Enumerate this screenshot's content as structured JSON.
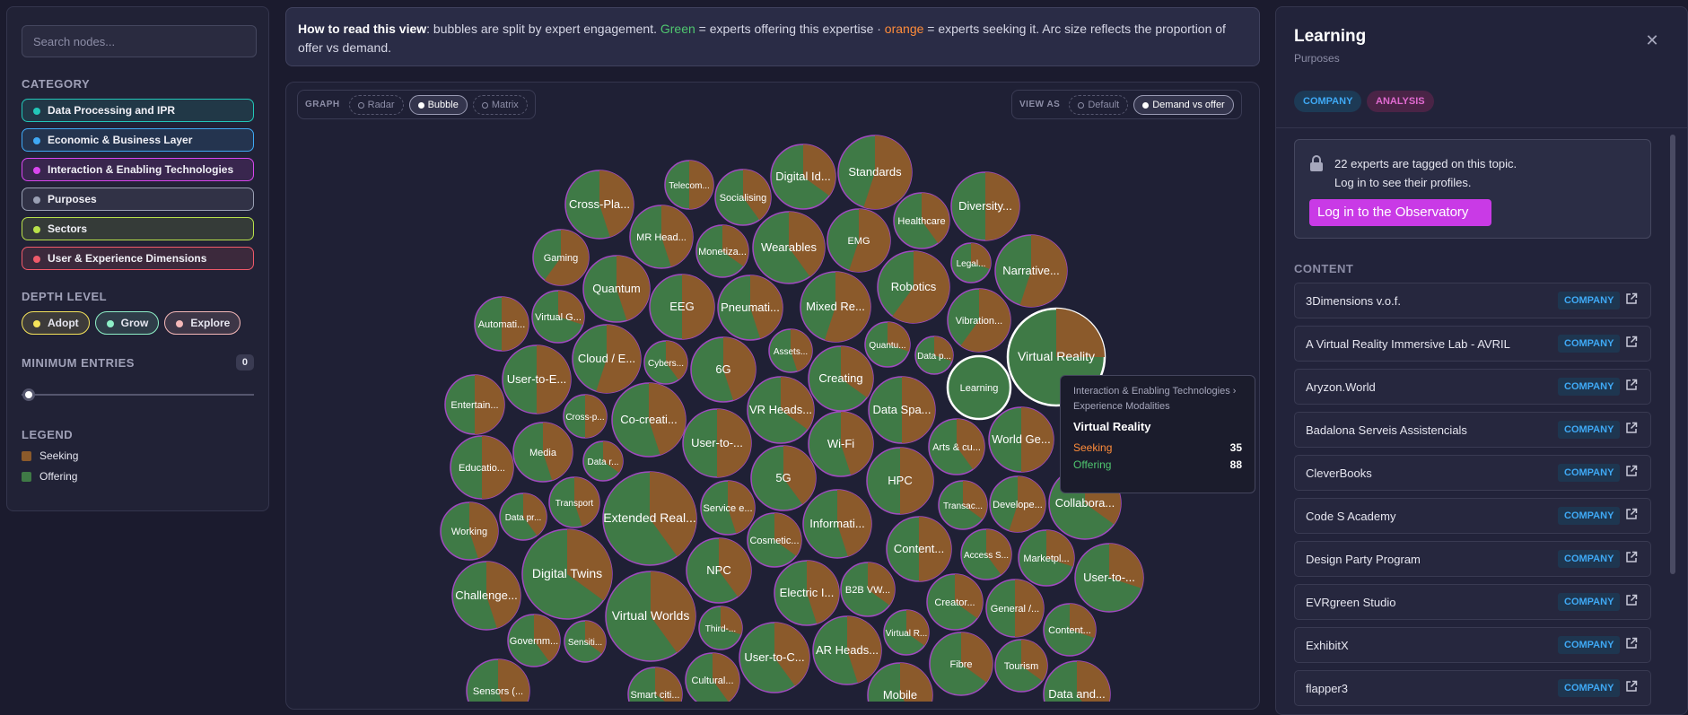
{
  "sidebar": {
    "search_placeholder": "Search nodes...",
    "category_title": "CATEGORY",
    "categories": [
      {
        "label": "Data Processing and IPR",
        "color": "#22c7b8"
      },
      {
        "label": "Economic & Business Layer",
        "color": "#3fa9f5"
      },
      {
        "label": "Interaction & Enabling Technologies",
        "color": "#d946ef"
      },
      {
        "label": "Purposes",
        "color": "#9aa0b4"
      },
      {
        "label": "Sectors",
        "color": "#b9e24a"
      },
      {
        "label": "User & Experience Dimensions",
        "color": "#f05a6a"
      }
    ],
    "depth_title": "DEPTH LEVEL",
    "depths": [
      {
        "label": "Adopt",
        "color": "#f5e35a"
      },
      {
        "label": "Grow",
        "color": "#8ef0c8"
      },
      {
        "label": "Explore",
        "color": "#f5b8b8"
      }
    ],
    "min_entries_title": "MINIMUM ENTRIES",
    "min_entries_value": "0",
    "min_entries_level": 0,
    "legend_title": "LEGEND",
    "legend": [
      {
        "label": "Seeking",
        "color": "#8b5a2b"
      },
      {
        "label": "Offering",
        "color": "#3f7a46"
      }
    ]
  },
  "banner": {
    "lead": "How to read this view",
    "p1": ": bubbles are split by expert engagement. ",
    "green": "Green",
    "p2": " = experts offering this expertise · ",
    "orange": "orange",
    "p3": " = experts seeking it. Arc size reflects the proportion of offer vs demand."
  },
  "controls": {
    "graph_label": "GRAPH",
    "graph_options": [
      "Radar",
      "Bubble",
      "Matrix"
    ],
    "graph_active": "Bubble",
    "view_label": "VIEW AS",
    "view_options": [
      "Default",
      "Demand vs offer"
    ],
    "view_active": "Demand vs offer"
  },
  "bubbles": [
    {
      "label": "Standards"
    },
    {
      "label": "Digital Id..."
    },
    {
      "label": "Telecom..."
    },
    {
      "label": "Socialising"
    },
    {
      "label": "Cross-Pla..."
    },
    {
      "label": "Diversity..."
    },
    {
      "label": "Healthcare"
    },
    {
      "label": "MR Head..."
    },
    {
      "label": "Wearables"
    },
    {
      "label": "EMG"
    },
    {
      "label": "Monetiza..."
    },
    {
      "label": "Gaming"
    },
    {
      "label": "Legal..."
    },
    {
      "label": "Narrative..."
    },
    {
      "label": "Quantum"
    },
    {
      "label": "Robotics"
    },
    {
      "label": "EEG"
    },
    {
      "label": "Pneumati..."
    },
    {
      "label": "Mixed Re..."
    },
    {
      "label": "Virtual G..."
    },
    {
      "label": "Automati..."
    },
    {
      "label": "Vibration..."
    },
    {
      "label": "Assets..."
    },
    {
      "label": "Quantu..."
    },
    {
      "label": "Cloud / E..."
    },
    {
      "label": "Cybers..."
    },
    {
      "label": "6G"
    },
    {
      "label": "Data p..."
    },
    {
      "label": "Virtual Reality"
    },
    {
      "label": "User-to-E..."
    },
    {
      "label": "Creating"
    },
    {
      "label": "Learning"
    },
    {
      "label": "Entertain..."
    },
    {
      "label": "Cross-p..."
    },
    {
      "label": "Co-creati..."
    },
    {
      "label": "VR Heads..."
    },
    {
      "label": "Data Spa..."
    },
    {
      "label": "User-to-..."
    },
    {
      "label": "Wi-Fi"
    },
    {
      "label": "Arts & cu..."
    },
    {
      "label": "World Ge..."
    },
    {
      "label": "Media"
    },
    {
      "label": "Data r..."
    },
    {
      "label": "Educatio..."
    },
    {
      "label": "5G"
    },
    {
      "label": "HPC"
    },
    {
      "label": "Collabora..."
    },
    {
      "label": "Transport"
    },
    {
      "label": "Service e..."
    },
    {
      "label": "Transac..."
    },
    {
      "label": "Develope..."
    },
    {
      "label": "Data pr..."
    },
    {
      "label": "Extended Real..."
    },
    {
      "label": "Informati..."
    },
    {
      "label": "Working"
    },
    {
      "label": "Cosmetic..."
    },
    {
      "label": "Content..."
    },
    {
      "label": "Access S..."
    },
    {
      "label": "Marketpl..."
    },
    {
      "label": "Digital Twins"
    },
    {
      "label": "NPC"
    },
    {
      "label": "B2B VW..."
    },
    {
      "label": "User-to-..."
    },
    {
      "label": "Challenge..."
    },
    {
      "label": "Electric I..."
    },
    {
      "label": "Creator..."
    },
    {
      "label": "General /..."
    },
    {
      "label": "Virtual Worlds"
    },
    {
      "label": "Third-..."
    },
    {
      "label": "Virtual R..."
    },
    {
      "label": "Content..."
    },
    {
      "label": "Governm..."
    },
    {
      "label": "Sensiti..."
    },
    {
      "label": "User-to-C..."
    },
    {
      "label": "AR Heads..."
    },
    {
      "label": "Fibre"
    },
    {
      "label": "Tourism"
    },
    {
      "label": "Cultural..."
    },
    {
      "label": "Sensors (..."
    },
    {
      "label": "Smart citi..."
    },
    {
      "label": "Mobile"
    },
    {
      "label": "Data and..."
    }
  ],
  "tooltip": {
    "path": "Interaction & Enabling Technologies › Experience Modalities",
    "name": "Virtual Reality",
    "seeking_label": "Seeking",
    "seeking_value": "35",
    "offering_label": "Offering",
    "offering_value": "88"
  },
  "panel": {
    "title": "Learning",
    "subtitle": "Purposes",
    "tags": [
      "COMPANY",
      "ANALYSIS"
    ],
    "lock_text_1": "22 experts are tagged on this topic.",
    "lock_text_2": "Log in to see their profiles.",
    "login_label": "Log in to the Observatory",
    "content_title": "CONTENT",
    "items": [
      {
        "name": "3Dimensions v.o.f.",
        "badge": "COMPANY"
      },
      {
        "name": "A Virtual Reality Immersive Lab - AVRIL",
        "badge": "COMPANY"
      },
      {
        "name": "Aryzon.World",
        "badge": "COMPANY"
      },
      {
        "name": "Badalona Serveis Assistencials",
        "badge": "COMPANY"
      },
      {
        "name": "CleverBooks",
        "badge": "COMPANY"
      },
      {
        "name": "Code S Academy",
        "badge": "COMPANY"
      },
      {
        "name": "Design Party Program",
        "badge": "COMPANY"
      },
      {
        "name": "EVRgreen Studio",
        "badge": "COMPANY"
      },
      {
        "name": "ExhibitX",
        "badge": "COMPANY"
      },
      {
        "name": "flapper3",
        "badge": "COMPANY"
      }
    ]
  },
  "colors": {
    "seeking": "#8b5a2b",
    "offering": "#3f7a46",
    "accent": "#c93ae6"
  }
}
